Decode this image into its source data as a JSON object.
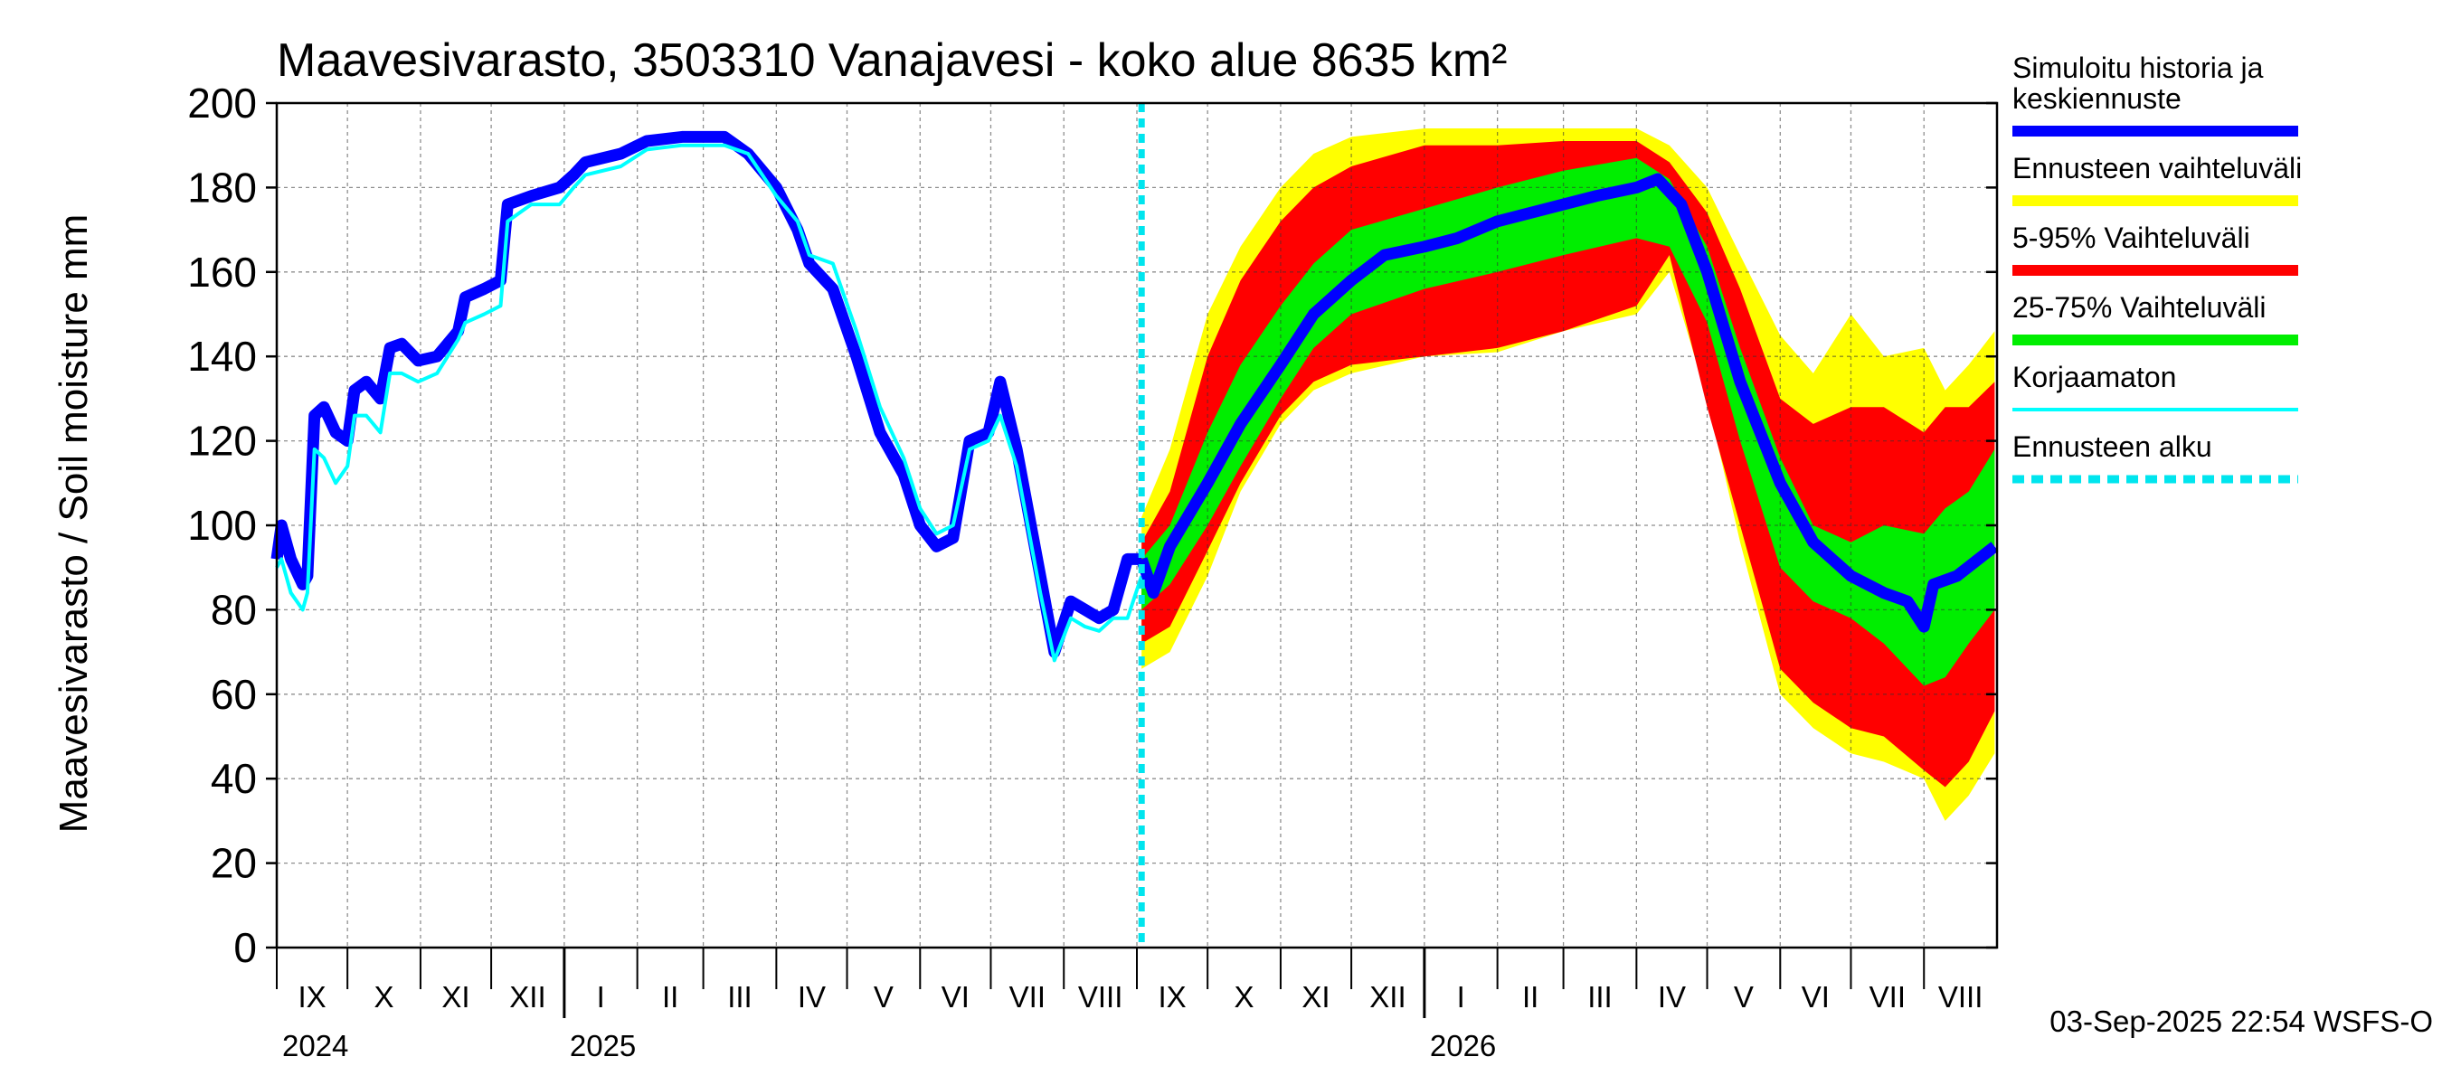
{
  "chart_data": {
    "type": "area",
    "title": "Maavesivarasto, 3503310 Vanajavesi - koko alue 8635 km²",
    "ylabel": "Maavesivarasto / Soil moisture   mm",
    "ylim": [
      0,
      200
    ],
    "yticks": [
      0,
      20,
      40,
      60,
      80,
      100,
      120,
      140,
      160,
      180,
      200
    ],
    "grid": true,
    "legend_position": "right",
    "x_range": [
      "2024-09-01",
      "2026-08-31"
    ],
    "forecast_start": "2025-09-03",
    "timestamp": "03-Sep-2025 22:54 WSFS-O",
    "months": [
      {
        "label": "IX",
        "start": "2024-09-01"
      },
      {
        "label": "X",
        "start": "2024-10-01"
      },
      {
        "label": "XI",
        "start": "2024-11-01"
      },
      {
        "label": "XII",
        "start": "2024-12-01"
      },
      {
        "label": "I",
        "start": "2025-01-01"
      },
      {
        "label": "II",
        "start": "2025-02-01"
      },
      {
        "label": "III",
        "start": "2025-03-01"
      },
      {
        "label": "IV",
        "start": "2025-04-01"
      },
      {
        "label": "V",
        "start": "2025-05-01"
      },
      {
        "label": "VI",
        "start": "2025-06-01"
      },
      {
        "label": "VII",
        "start": "2025-07-01"
      },
      {
        "label": "VIII",
        "start": "2025-08-01"
      },
      {
        "label": "IX",
        "start": "2025-09-01"
      },
      {
        "label": "X",
        "start": "2025-10-01"
      },
      {
        "label": "XI",
        "start": "2025-11-01"
      },
      {
        "label": "XII",
        "start": "2025-12-01"
      },
      {
        "label": "I",
        "start": "2026-01-01"
      },
      {
        "label": "II",
        "start": "2026-02-01"
      },
      {
        "label": "III",
        "start": "2026-03-01"
      },
      {
        "label": "IV",
        "start": "2026-04-01"
      },
      {
        "label": "V",
        "start": "2026-05-01"
      },
      {
        "label": "VI",
        "start": "2026-06-01"
      },
      {
        "label": "VII",
        "start": "2026-07-01"
      },
      {
        "label": "VIII",
        "start": "2026-08-01"
      }
    ],
    "years": [
      {
        "label": "2024",
        "start": "2024-09-01"
      },
      {
        "label": "2025",
        "start": "2025-01-01"
      },
      {
        "label": "2026",
        "start": "2026-01-01"
      }
    ],
    "legend": [
      {
        "label": "Simuloitu historia ja keskiennuste",
        "color": "#0000ff",
        "style": "thick"
      },
      {
        "label": "Ennusteen vaihteluväli",
        "color": "#ffff00",
        "style": "thick"
      },
      {
        "label": "5-95% Vaihteluväli",
        "color": "#ff0000",
        "style": "thick"
      },
      {
        "label": "25-75% Vaihteluväli",
        "color": "#00ee00",
        "style": "thick"
      },
      {
        "label": "Korjaamaton",
        "color": "#00ffff",
        "style": "thin"
      },
      {
        "label": "Ennusteen alku",
        "color": "#00e5ee",
        "style": "dashed"
      }
    ],
    "series": [
      {
        "name": "Simuloitu historia ja keskiennuste",
        "color": "#0000ff",
        "points": [
          [
            "2024-09-01",
            92
          ],
          [
            "2024-09-03",
            100
          ],
          [
            "2024-09-07",
            92
          ],
          [
            "2024-09-12",
            86
          ],
          [
            "2024-09-14",
            88
          ],
          [
            "2024-09-17",
            126
          ],
          [
            "2024-09-21",
            128
          ],
          [
            "2024-09-26",
            122
          ],
          [
            "2024-10-01",
            120
          ],
          [
            "2024-10-04",
            132
          ],
          [
            "2024-10-09",
            134
          ],
          [
            "2024-10-15",
            130
          ],
          [
            "2024-10-19",
            142
          ],
          [
            "2024-10-24",
            143
          ],
          [
            "2024-10-31",
            139
          ],
          [
            "2024-11-08",
            140
          ],
          [
            "2024-11-17",
            146
          ],
          [
            "2024-11-20",
            154
          ],
          [
            "2024-11-28",
            156
          ],
          [
            "2024-12-05",
            158
          ],
          [
            "2024-12-08",
            176
          ],
          [
            "2024-12-18",
            178
          ],
          [
            "2024-12-30",
            180
          ],
          [
            "2025-01-05",
            183
          ],
          [
            "2025-01-10",
            186
          ],
          [
            "2025-01-25",
            188
          ],
          [
            "2025-02-05",
            191
          ],
          [
            "2025-02-20",
            192
          ],
          [
            "2025-03-10",
            192
          ],
          [
            "2025-03-20",
            188
          ],
          [
            "2025-04-01",
            180
          ],
          [
            "2025-04-10",
            170
          ],
          [
            "2025-04-15",
            162
          ],
          [
            "2025-04-25",
            156
          ],
          [
            "2025-05-05",
            140
          ],
          [
            "2025-05-15",
            122
          ],
          [
            "2025-05-25",
            112
          ],
          [
            "2025-06-01",
            100
          ],
          [
            "2025-06-08",
            95
          ],
          [
            "2025-06-15",
            97
          ],
          [
            "2025-06-22",
            120
          ],
          [
            "2025-06-30",
            122
          ],
          [
            "2025-07-05",
            134
          ],
          [
            "2025-07-12",
            118
          ],
          [
            "2025-07-22",
            88
          ],
          [
            "2025-07-28",
            70
          ],
          [
            "2025-08-04",
            82
          ],
          [
            "2025-08-10",
            80
          ],
          [
            "2025-08-16",
            78
          ],
          [
            "2025-08-22",
            80
          ],
          [
            "2025-08-28",
            92
          ],
          [
            "2025-09-03",
            92
          ]
        ]
      },
      {
        "name": "Korjaamaton",
        "color": "#00ffff",
        "points": [
          [
            "2024-09-01",
            90
          ],
          [
            "2024-09-03",
            92
          ],
          [
            "2024-09-07",
            84
          ],
          [
            "2024-09-12",
            80
          ],
          [
            "2024-09-14",
            84
          ],
          [
            "2024-09-17",
            118
          ],
          [
            "2024-09-21",
            116
          ],
          [
            "2024-09-26",
            110
          ],
          [
            "2024-10-01",
            114
          ],
          [
            "2024-10-04",
            126
          ],
          [
            "2024-10-09",
            126
          ],
          [
            "2024-10-15",
            122
          ],
          [
            "2024-10-19",
            136
          ],
          [
            "2024-10-24",
            136
          ],
          [
            "2024-10-31",
            134
          ],
          [
            "2024-11-08",
            136
          ],
          [
            "2024-11-17",
            144
          ],
          [
            "2024-11-20",
            148
          ],
          [
            "2024-11-28",
            150
          ],
          [
            "2024-12-05",
            152
          ],
          [
            "2024-12-08",
            172
          ],
          [
            "2024-12-18",
            176
          ],
          [
            "2024-12-30",
            176
          ],
          [
            "2025-01-05",
            180
          ],
          [
            "2025-01-10",
            183
          ],
          [
            "2025-01-25",
            185
          ],
          [
            "2025-02-05",
            189
          ],
          [
            "2025-02-20",
            190
          ],
          [
            "2025-03-10",
            190
          ],
          [
            "2025-03-20",
            188
          ],
          [
            "2025-04-01",
            178
          ],
          [
            "2025-04-10",
            172
          ],
          [
            "2025-04-15",
            164
          ],
          [
            "2025-04-25",
            162
          ],
          [
            "2025-05-05",
            146
          ],
          [
            "2025-05-15",
            128
          ],
          [
            "2025-05-25",
            116
          ],
          [
            "2025-06-01",
            104
          ],
          [
            "2025-06-08",
            98
          ],
          [
            "2025-06-15",
            100
          ],
          [
            "2025-06-22",
            118
          ],
          [
            "2025-06-30",
            120
          ],
          [
            "2025-07-05",
            126
          ],
          [
            "2025-07-12",
            114
          ],
          [
            "2025-07-22",
            84
          ],
          [
            "2025-07-28",
            68
          ],
          [
            "2025-08-04",
            78
          ],
          [
            "2025-08-10",
            76
          ],
          [
            "2025-08-16",
            75
          ],
          [
            "2025-08-22",
            78
          ],
          [
            "2025-08-28",
            78
          ],
          [
            "2025-09-03",
            88
          ]
        ]
      },
      {
        "name": "Keskiennuste",
        "color": "#0000ff",
        "points": [
          [
            "2025-09-03",
            92
          ],
          [
            "2025-09-08",
            84
          ],
          [
            "2025-09-15",
            95
          ],
          [
            "2025-10-01",
            110
          ],
          [
            "2025-10-15",
            124
          ],
          [
            "2025-11-01",
            138
          ],
          [
            "2025-11-15",
            150
          ],
          [
            "2025-12-01",
            158
          ],
          [
            "2025-12-15",
            164
          ],
          [
            "2026-01-01",
            166
          ],
          [
            "2026-01-15",
            168
          ],
          [
            "2026-02-01",
            172
          ],
          [
            "2026-03-01",
            176
          ],
          [
            "2026-03-15",
            178
          ],
          [
            "2026-04-01",
            180
          ],
          [
            "2026-04-10",
            182
          ],
          [
            "2026-04-20",
            176
          ],
          [
            "2026-05-01",
            160
          ],
          [
            "2026-05-15",
            134
          ],
          [
            "2026-06-01",
            110
          ],
          [
            "2026-06-15",
            96
          ],
          [
            "2026-07-01",
            88
          ],
          [
            "2026-07-15",
            84
          ],
          [
            "2026-07-25",
            82
          ],
          [
            "2026-08-01",
            76
          ],
          [
            "2026-08-05",
            86
          ],
          [
            "2026-08-15",
            88
          ],
          [
            "2026-08-31",
            95
          ]
        ]
      }
    ],
    "bands": [
      {
        "name": "Ennusteen vaihteluväli",
        "color": "#ffff00",
        "points": [
          [
            "2025-09-03",
            66,
            102
          ],
          [
            "2025-09-15",
            70,
            118
          ],
          [
            "2025-10-01",
            88,
            150
          ],
          [
            "2025-10-15",
            108,
            166
          ],
          [
            "2025-11-01",
            124,
            180
          ],
          [
            "2025-11-15",
            132,
            188
          ],
          [
            "2025-12-01",
            136,
            192
          ],
          [
            "2026-01-01",
            140,
            194
          ],
          [
            "2026-02-01",
            141,
            194
          ],
          [
            "2026-03-01",
            146,
            194
          ],
          [
            "2026-04-01",
            150,
            194
          ],
          [
            "2026-04-15",
            160,
            190
          ],
          [
            "2026-05-01",
            130,
            180
          ],
          [
            "2026-05-15",
            96,
            164
          ],
          [
            "2026-06-01",
            60,
            145
          ],
          [
            "2026-06-15",
            52,
            136
          ],
          [
            "2026-07-01",
            46,
            150
          ],
          [
            "2026-07-15",
            44,
            140
          ],
          [
            "2026-08-01",
            40,
            142
          ],
          [
            "2026-08-10",
            30,
            132
          ],
          [
            "2026-08-20",
            36,
            138
          ],
          [
            "2026-08-31",
            46,
            146
          ]
        ]
      },
      {
        "name": "5-95% Vaihteluväli",
        "color": "#ff0000",
        "points": [
          [
            "2025-09-03",
            72,
            96
          ],
          [
            "2025-09-15",
            76,
            108
          ],
          [
            "2025-10-01",
            94,
            140
          ],
          [
            "2025-10-15",
            110,
            158
          ],
          [
            "2025-11-01",
            126,
            172
          ],
          [
            "2025-11-15",
            134,
            180
          ],
          [
            "2025-12-01",
            138,
            185
          ],
          [
            "2026-01-01",
            140,
            190
          ],
          [
            "2026-02-01",
            142,
            190
          ],
          [
            "2026-03-01",
            146,
            191
          ],
          [
            "2026-04-01",
            152,
            191
          ],
          [
            "2026-04-15",
            164,
            186
          ],
          [
            "2026-05-01",
            128,
            174
          ],
          [
            "2026-05-15",
            100,
            156
          ],
          [
            "2026-06-01",
            66,
            130
          ],
          [
            "2026-06-15",
            58,
            124
          ],
          [
            "2026-07-01",
            52,
            128
          ],
          [
            "2026-07-15",
            50,
            128
          ],
          [
            "2026-08-01",
            42,
            122
          ],
          [
            "2026-08-10",
            38,
            128
          ],
          [
            "2026-08-20",
            44,
            128
          ],
          [
            "2026-08-31",
            56,
            134
          ]
        ]
      },
      {
        "name": "25-75% Vaihteluväli",
        "color": "#00ee00",
        "points": [
          [
            "2025-09-03",
            80,
            92
          ],
          [
            "2025-09-15",
            86,
            100
          ],
          [
            "2025-10-01",
            100,
            122
          ],
          [
            "2025-10-15",
            114,
            138
          ],
          [
            "2025-11-01",
            130,
            152
          ],
          [
            "2025-11-15",
            142,
            162
          ],
          [
            "2025-12-01",
            150,
            170
          ],
          [
            "2026-01-01",
            156,
            175
          ],
          [
            "2026-02-01",
            160,
            180
          ],
          [
            "2026-03-01",
            164,
            184
          ],
          [
            "2026-04-01",
            168,
            187
          ],
          [
            "2026-04-15",
            166,
            182
          ],
          [
            "2026-05-01",
            148,
            166
          ],
          [
            "2026-05-15",
            120,
            142
          ],
          [
            "2026-06-01",
            90,
            116
          ],
          [
            "2026-06-15",
            82,
            100
          ],
          [
            "2026-07-01",
            78,
            96
          ],
          [
            "2026-07-15",
            72,
            100
          ],
          [
            "2026-08-01",
            62,
            98
          ],
          [
            "2026-08-10",
            64,
            104
          ],
          [
            "2026-08-20",
            72,
            108
          ],
          [
            "2026-08-31",
            80,
            118
          ]
        ]
      }
    ]
  }
}
